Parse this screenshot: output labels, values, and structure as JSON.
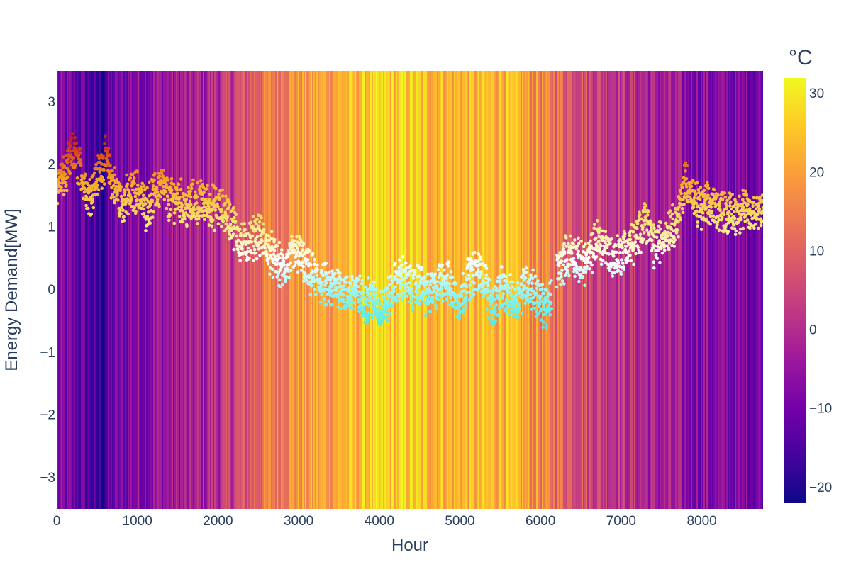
{
  "chart_data": {
    "type": "scatter",
    "title": "",
    "xlabel": "Hour",
    "ylabel": "Energy Demand[MW]",
    "xlim": [
      0,
      8760
    ],
    "ylim": [
      -3.5,
      3.5
    ],
    "xticks": [
      0,
      1000,
      2000,
      3000,
      4000,
      5000,
      6000,
      7000,
      8000
    ],
    "yticks": [
      -3,
      -2,
      -1,
      0,
      1,
      2,
      3
    ],
    "background": {
      "type": "heatmap",
      "description_source": "hourly outdoor temperature as vertical color bands",
      "colorscale": "plasma",
      "temperature_profile": {
        "hours": [
          0,
          300,
          550,
          650,
          900,
          1300,
          1700,
          2100,
          2400,
          2800,
          3200,
          3700,
          4200,
          4700,
          5200,
          5500,
          5800,
          6200,
          6600,
          7000,
          7400,
          7800,
          8200,
          8760
        ],
        "temps": [
          -8,
          -12,
          -19,
          -12,
          -7,
          -5,
          -3,
          2,
          10,
          17,
          20,
          24,
          26,
          24,
          22,
          24,
          20,
          12,
          6,
          2,
          -2,
          -6,
          -8,
          -9
        ]
      }
    },
    "colorbar": {
      "title": "°C",
      "min": -22,
      "max": 32,
      "ticks": [
        -20,
        -10,
        0,
        10,
        20,
        30
      ],
      "colors": [
        "#0d0887",
        "#46039f",
        "#7201a8",
        "#9c179e",
        "#bd3786",
        "#d8576b",
        "#ed7953",
        "#fb9f3a",
        "#fdca26",
        "#f0f921"
      ]
    },
    "series": [
      {
        "points_color_scale": [
          "#cc1f1a",
          "#f5a623",
          "#f6e36a",
          "#ffffff",
          "#7ff2f0",
          "#33e6e6"
        ],
        "x": [
          0,
          100,
          200,
          300,
          400,
          500,
          600,
          700,
          800,
          900,
          1000,
          1100,
          1200,
          1300,
          1400,
          1500,
          1600,
          1700,
          1800,
          1900,
          2000,
          2100,
          2200,
          2300,
          2400,
          2500,
          2600,
          2700,
          2800,
          2900,
          3000,
          3100,
          3200,
          3300,
          3400,
          3500,
          3600,
          3700,
          3800,
          3900,
          4000,
          4100,
          4200,
          4300,
          4400,
          4500,
          4600,
          4700,
          4800,
          4900,
          5000,
          5100,
          5200,
          5300,
          5400,
          5500,
          5600,
          5700,
          5800,
          5900,
          6000,
          6100,
          6200,
          6300,
          6400,
          6500,
          6600,
          6700,
          6800,
          6900,
          7000,
          7100,
          7200,
          7300,
          7400,
          7500,
          7600,
          7700,
          7800,
          7900,
          8000,
          8100,
          8200,
          8300,
          8400,
          8500,
          8600,
          8760
        ],
        "y": [
          1.7,
          1.8,
          2.2,
          1.9,
          1.5,
          1.8,
          2.1,
          1.7,
          1.4,
          1.5,
          1.6,
          1.3,
          1.5,
          1.7,
          1.4,
          1.5,
          1.3,
          1.4,
          1.4,
          1.35,
          1.3,
          1.25,
          1.0,
          0.7,
          0.8,
          0.9,
          0.7,
          0.5,
          0.3,
          0.5,
          0.6,
          0.3,
          0.2,
          0.1,
          0.0,
          0.1,
          -0.1,
          0.0,
          -0.2,
          -0.1,
          -0.3,
          -0.2,
          0.1,
          0.2,
          0.0,
          0.1,
          -0.1,
          0.0,
          0.2,
          0.0,
          -0.2,
          0.2,
          0.3,
          0.2,
          -0.3,
          0.0,
          -0.1,
          -0.2,
          0.1,
          0.0,
          -0.2,
          -0.3,
          0.3,
          0.5,
          0.6,
          0.4,
          0.5,
          0.8,
          0.7,
          0.5,
          0.6,
          0.7,
          0.8,
          1.2,
          0.7,
          0.8,
          1.0,
          1.1,
          1.8,
          1.4,
          1.3,
          1.35,
          1.3,
          1.25,
          1.2,
          1.3,
          1.2,
          1.35
        ]
      }
    ]
  }
}
